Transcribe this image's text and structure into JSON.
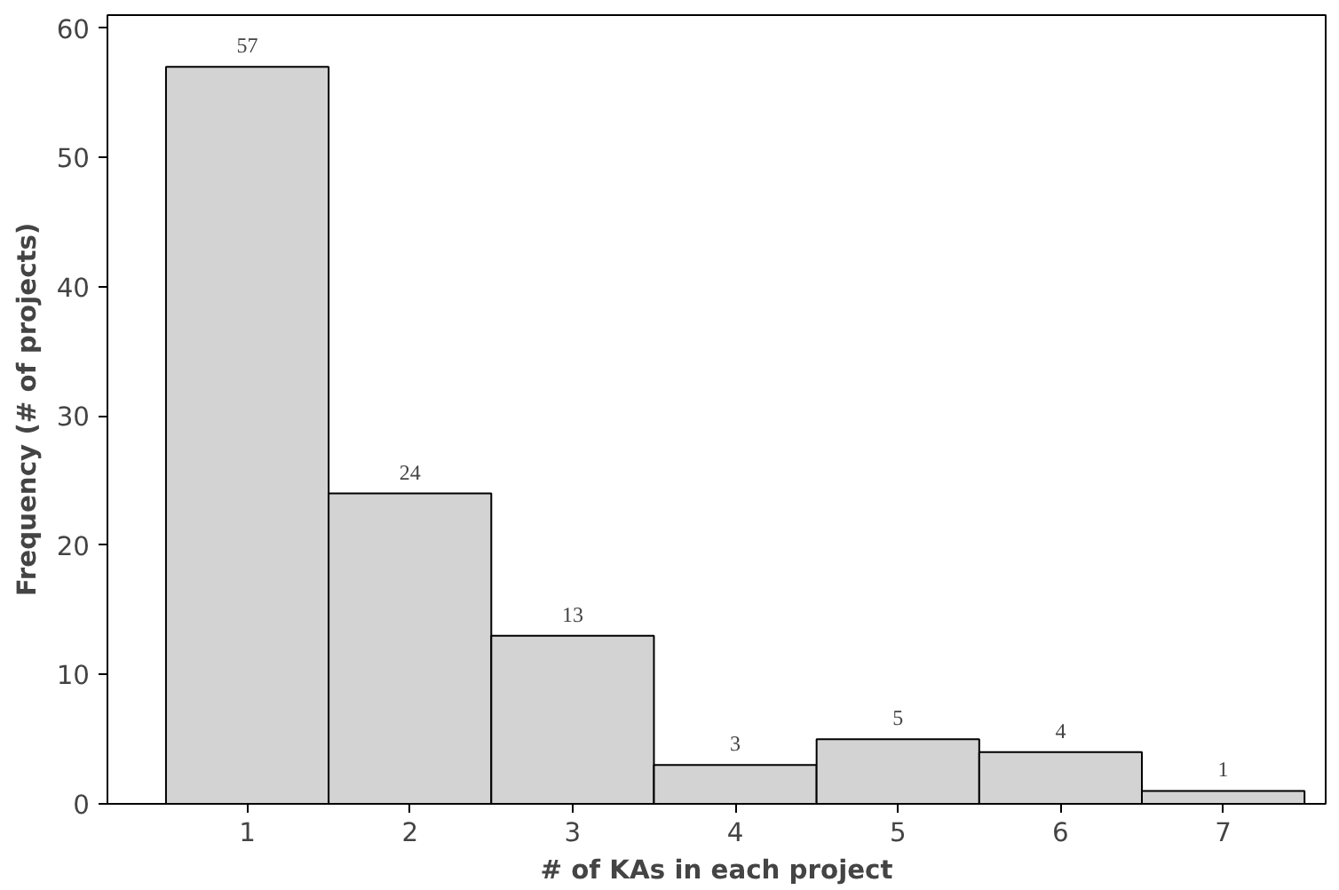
{
  "chart_data": {
    "type": "histogram",
    "xlabel": "# of KAs in each project",
    "ylabel": "Frequency (# of projects)",
    "bins": [
      0.5,
      1.5,
      2.5,
      3.5,
      4.5,
      5.5,
      6.5,
      7.5
    ],
    "values": [
      57,
      24,
      13,
      3,
      5,
      4,
      1
    ],
    "color": "#d3d3d3",
    "data_labels": true,
    "xlim": [
      0.14,
      7.63
    ],
    "ylim": [
      0,
      61
    ],
    "xticks": [
      1,
      2,
      3,
      4,
      5,
      6,
      7
    ],
    "yticks": [
      0,
      10,
      20,
      30,
      40,
      50,
      60
    ],
    "grid": false
  }
}
